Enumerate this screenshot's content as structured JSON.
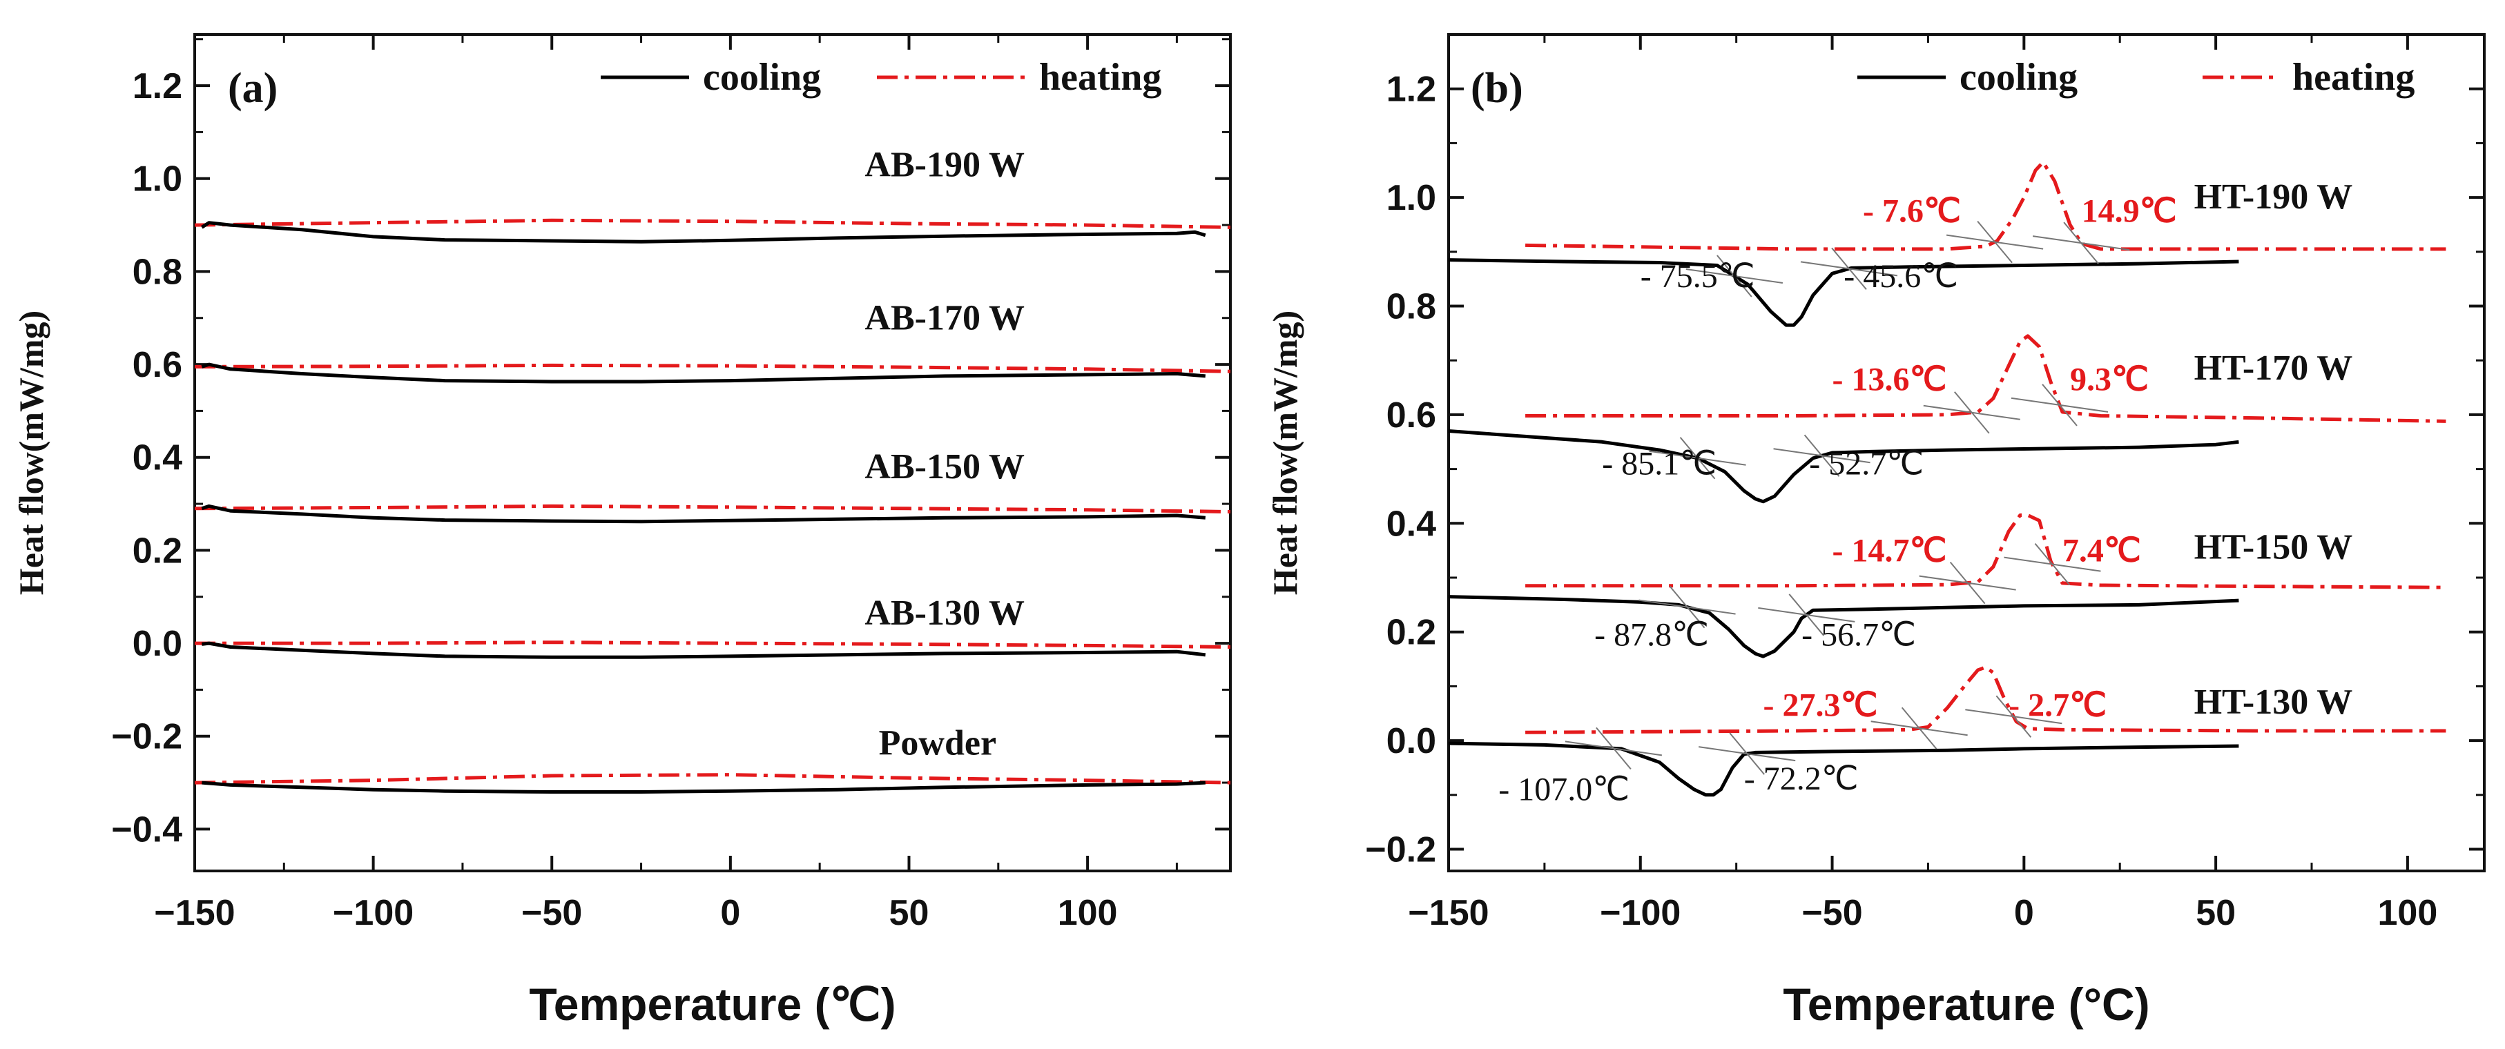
{
  "chart_data": [
    {
      "type": "line",
      "panel_label": "(a)",
      "xlabel": "Temperature (℃)",
      "ylabel": "Heat flow(mW/mg)",
      "xlim": [
        -150,
        140
      ],
      "ylim": [
        -0.49,
        1.31
      ],
      "xticks": [
        -150,
        -100,
        -50,
        0,
        50,
        100
      ],
      "xtick_labels": [
        "−150",
        "−100",
        "−50",
        "0",
        "50",
        "100"
      ],
      "yticks": [
        -0.4,
        -0.2,
        0.0,
        0.2,
        0.4,
        0.6,
        0.8,
        1.0,
        1.2
      ],
      "ytick_labels": [
        "−0.4",
        "−0.2",
        "0.0",
        "0.2",
        "0.4",
        "0.6",
        "0.8",
        "1.0",
        "1.2"
      ],
      "legend": {
        "cooling": "cooling",
        "heating": "heating",
        "cooling_color": "#000000",
        "heating_color": "#e41a1c",
        "position": "top-right"
      },
      "series": [
        {
          "name": "AB-190 W",
          "label_value_x": 60,
          "label_value_y": 1.005,
          "cooling": {
            "x": [
              -148,
              -146,
              -140,
              -120,
              -100,
              -80,
              -50,
              -25,
              0,
              30,
              60,
              100,
              125,
              130,
              133
            ],
            "y": [
              0.895,
              0.905,
              0.9,
              0.89,
              0.875,
              0.868,
              0.866,
              0.864,
              0.867,
              0.872,
              0.876,
              0.88,
              0.882,
              0.885,
              0.878
            ]
          },
          "heating": {
            "x": [
              -150,
              -100,
              -50,
              0,
              50,
              100,
              140
            ],
            "y": [
              0.9,
              0.905,
              0.91,
              0.908,
              0.903,
              0.9,
              0.895
            ]
          }
        },
        {
          "name": "AB-170 W",
          "label_value_x": 60,
          "label_value_y": 0.675,
          "cooling": {
            "x": [
              -148,
              -146,
              -140,
              -120,
              -100,
              -80,
              -50,
              -25,
              0,
              30,
              60,
              100,
              125,
              133
            ],
            "y": [
              0.595,
              0.6,
              0.59,
              0.58,
              0.572,
              0.565,
              0.563,
              0.563,
              0.565,
              0.57,
              0.575,
              0.578,
              0.58,
              0.575
            ]
          },
          "heating": {
            "x": [
              -150,
              -100,
              -50,
              0,
              50,
              100,
              140
            ],
            "y": [
              0.595,
              0.596,
              0.598,
              0.597,
              0.594,
              0.59,
              0.585
            ]
          }
        },
        {
          "name": "AB-150 W",
          "label_value_x": 60,
          "label_value_y": 0.355,
          "cooling": {
            "x": [
              -148,
              -146,
              -140,
              -120,
              -100,
              -80,
              -50,
              -25,
              0,
              30,
              60,
              100,
              125,
              133
            ],
            "y": [
              0.29,
              0.295,
              0.285,
              0.278,
              0.27,
              0.265,
              0.263,
              0.262,
              0.264,
              0.267,
              0.27,
              0.272,
              0.275,
              0.27
            ]
          },
          "heating": {
            "x": [
              -150,
              -100,
              -50,
              0,
              50,
              100,
              140
            ],
            "y": [
              0.29,
              0.292,
              0.295,
              0.293,
              0.29,
              0.287,
              0.283
            ]
          }
        },
        {
          "name": "AB-130 W",
          "label_value_x": 60,
          "label_value_y": 0.04,
          "cooling": {
            "x": [
              -148,
              -146,
              -140,
              -120,
              -100,
              -80,
              -50,
              -25,
              0,
              30,
              60,
              100,
              125,
              133
            ],
            "y": [
              -0.002,
              0.0,
              -0.008,
              -0.015,
              -0.022,
              -0.028,
              -0.03,
              -0.03,
              -0.028,
              -0.025,
              -0.022,
              -0.02,
              -0.018,
              -0.025
            ]
          },
          "heating": {
            "x": [
              -150,
              -100,
              -50,
              0,
              50,
              100,
              140
            ],
            "y": [
              0.0,
              0.0,
              0.002,
              0.0,
              -0.002,
              -0.005,
              -0.008
            ]
          }
        },
        {
          "name": "Powder",
          "label_value_x": 58,
          "label_value_y": -0.24,
          "cooling": {
            "x": [
              -148,
              -140,
              -120,
              -100,
              -80,
              -50,
              -25,
              0,
              30,
              60,
              100,
              125,
              133
            ],
            "y": [
              -0.3,
              -0.305,
              -0.31,
              -0.315,
              -0.318,
              -0.32,
              -0.32,
              -0.318,
              -0.315,
              -0.31,
              -0.305,
              -0.303,
              -0.3
            ]
          },
          "heating": {
            "x": [
              -150,
              -100,
              -50,
              0,
              50,
              100,
              140
            ],
            "y": [
              -0.3,
              -0.295,
              -0.285,
              -0.283,
              -0.29,
              -0.295,
              -0.3
            ]
          }
        }
      ]
    },
    {
      "type": "line",
      "panel_label": "(b)",
      "xlabel": "Temperature (°C)",
      "ylabel": "Heat flow(mW/mg)",
      "xlim": [
        -150,
        120
      ],
      "ylim": [
        -0.24,
        1.3
      ],
      "xticks": [
        -150,
        -100,
        -50,
        0,
        50,
        100
      ],
      "xtick_labels": [
        "−150",
        "−100",
        "−50",
        "0",
        "50",
        "100"
      ],
      "yticks": [
        -0.2,
        0.0,
        0.2,
        0.4,
        0.6,
        0.8,
        1.0,
        1.2
      ],
      "ytick_labels": [
        "−0.2",
        "0.0",
        "0.2",
        "0.4",
        "0.6",
        "0.8",
        "1.0",
        "1.2"
      ],
      "legend": {
        "cooling": "cooling",
        "heating": "heating",
        "cooling_color": "#000000",
        "heating_color": "#e41a1c",
        "position": "top-right"
      },
      "series": [
        {
          "name": "HT-190 W",
          "label_value_x": 65,
          "label_value_y": 0.98,
          "cooling": {
            "x": [
              -150,
              -120,
              -95,
              -80,
              -72,
              -66,
              -62,
              -60,
              -58,
              -55,
              -50,
              -45,
              -30,
              0,
              30,
              56
            ],
            "y": [
              0.885,
              0.882,
              0.88,
              0.875,
              0.84,
              0.79,
              0.765,
              0.765,
              0.78,
              0.82,
              0.86,
              0.87,
              0.872,
              0.875,
              0.878,
              0.882
            ]
          },
          "heating": {
            "x": [
              -130,
              -60,
              -20,
              -10,
              -7,
              -3,
              0,
              3,
              5,
              8,
              12,
              15,
              20,
              60,
              110
            ],
            "y": [
              0.912,
              0.905,
              0.905,
              0.91,
              0.92,
              0.96,
              1.0,
              1.05,
              1.065,
              1.03,
              0.95,
              0.915,
              0.905,
              0.905,
              0.905
            ]
          },
          "annotations": [
            {
              "text": "- 75.5℃",
              "type": "cooling",
              "x": -75.5,
              "label_x": -100,
              "label_y": 0.835
            },
            {
              "text": "- 45.6℃",
              "type": "cooling",
              "x": -45.6,
              "label_x": -47,
              "label_y": 0.835
            },
            {
              "text": "- 7.6℃",
              "type": "heating",
              "x": -7.6,
              "label_x": -42,
              "label_y": 0.955
            },
            {
              "text": "14.9℃",
              "type": "heating",
              "x": 14.9,
              "label_x": 15,
              "label_y": 0.955
            }
          ]
        },
        {
          "name": "HT-170 W",
          "label_value_x": 65,
          "label_value_y": 0.665,
          "cooling": {
            "x": [
              -150,
              -130,
              -110,
              -95,
              -85,
              -78,
              -73,
              -70,
              -68,
              -65,
              -60,
              -55,
              -50,
              -40,
              -20,
              0,
              30,
              50,
              56
            ],
            "y": [
              0.57,
              0.56,
              0.55,
              0.535,
              0.52,
              0.495,
              0.46,
              0.445,
              0.44,
              0.45,
              0.49,
              0.52,
              0.53,
              0.532,
              0.535,
              0.537,
              0.54,
              0.545,
              0.55
            ]
          },
          "heating": {
            "x": [
              -130,
              -60,
              -20,
              -12,
              -8,
              -4,
              -1,
              1,
              4,
              7,
              10,
              20,
              60,
              110
            ],
            "y": [
              0.598,
              0.598,
              0.6,
              0.605,
              0.63,
              0.69,
              0.735,
              0.745,
              0.725,
              0.66,
              0.605,
              0.598,
              0.594,
              0.588
            ]
          },
          "annotations": [
            {
              "text": "- 85.1℃",
              "type": "cooling",
              "x": -85.1,
              "label_x": -110,
              "label_y": 0.49
            },
            {
              "text": "- 52.7℃",
              "type": "cooling",
              "x": -52.7,
              "label_x": -56,
              "label_y": 0.49
            },
            {
              "text": "- 13.6℃",
              "type": "heating",
              "x": -13.6,
              "label_x": -50,
              "label_y": 0.645
            },
            {
              "text": "9.3℃",
              "type": "heating",
              "x": 9.3,
              "label_x": 12,
              "label_y": 0.645
            }
          ]
        },
        {
          "name": "HT-150 W",
          "label_value_x": 65,
          "label_value_y": 0.335,
          "cooling": {
            "x": [
              -150,
              -120,
              -100,
              -90,
              -82,
              -77,
              -73,
              -70,
              -68,
              -65,
              -60,
              -58,
              -55,
              -40,
              -20,
              0,
              30,
              56
            ],
            "y": [
              0.265,
              0.26,
              0.255,
              0.25,
              0.235,
              0.205,
              0.175,
              0.16,
              0.155,
              0.165,
              0.2,
              0.225,
              0.24,
              0.242,
              0.245,
              0.248,
              0.25,
              0.258
            ]
          },
          "heating": {
            "x": [
              -130,
              -60,
              -20,
              -12,
              -8,
              -4,
              -1,
              1,
              4,
              7,
              10,
              20,
              60,
              110
            ],
            "y": [
              0.285,
              0.285,
              0.287,
              0.292,
              0.32,
              0.385,
              0.415,
              0.415,
              0.405,
              0.33,
              0.29,
              0.286,
              0.284,
              0.282
            ]
          },
          "annotations": [
            {
              "text": "- 87.8℃",
              "type": "cooling",
              "x": -87.8,
              "label_x": -112,
              "label_y": 0.175
            },
            {
              "text": "- 56.7℃",
              "type": "cooling",
              "x": -56.7,
              "label_x": -58,
              "label_y": 0.175
            },
            {
              "text": "- 14.7℃",
              "type": "heating",
              "x": -14.7,
              "label_x": -50,
              "label_y": 0.33
            },
            {
              "text": "7.4℃",
              "type": "heating",
              "x": 7.4,
              "label_x": 10,
              "label_y": 0.33
            }
          ]
        },
        {
          "name": "HT-130 W",
          "label_value_x": 65,
          "label_value_y": 0.05,
          "cooling": {
            "x": [
              -150,
              -125,
              -105,
              -95,
              -90,
              -86,
              -83,
              -81,
              -79,
              -76,
              -73,
              -70,
              -50,
              -20,
              0,
              30,
              56
            ],
            "y": [
              -0.005,
              -0.008,
              -0.015,
              -0.04,
              -0.07,
              -0.09,
              -0.1,
              -0.1,
              -0.09,
              -0.05,
              -0.025,
              -0.022,
              -0.02,
              -0.018,
              -0.015,
              -0.012,
              -0.01
            ]
          },
          "heating": {
            "x": [
              -130,
              -60,
              -30,
              -25,
              -20,
              -15,
              -12,
              -10,
              -8,
              -5,
              -2,
              1,
              10,
              60,
              110
            ],
            "y": [
              0.015,
              0.018,
              0.02,
              0.025,
              0.06,
              0.105,
              0.13,
              0.135,
              0.125,
              0.075,
              0.035,
              0.022,
              0.02,
              0.018,
              0.018
            ]
          },
          "annotations": [
            {
              "text": "- 107.0℃",
              "type": "cooling",
              "x": -107.0,
              "label_x": -137,
              "label_y": -0.11
            },
            {
              "text": "- 72.2℃",
              "type": "cooling",
              "x": -72.2,
              "label_x": -73,
              "label_y": -0.09
            },
            {
              "text": "- 27.3℃",
              "type": "heating",
              "x": -27.3,
              "label_x": -68,
              "label_y": 0.045
            },
            {
              "text": "- 2.7℃",
              "type": "heating",
              "x": -2.7,
              "label_x": -4,
              "label_y": 0.045
            }
          ]
        }
      ]
    }
  ]
}
